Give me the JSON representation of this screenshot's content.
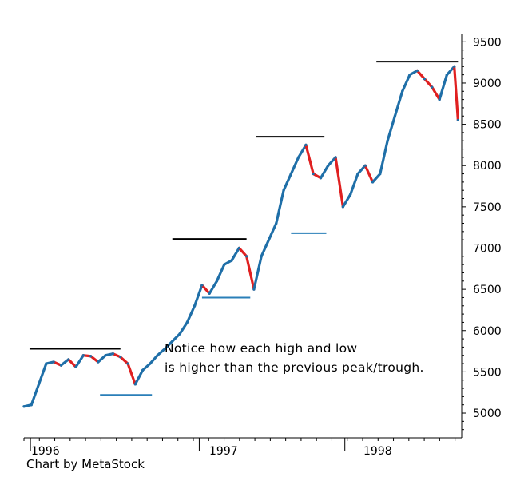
{
  "chart_data": {
    "type": "line",
    "title": "",
    "xlabel": "",
    "ylabel": "",
    "credit": "Chart by MetaStock",
    "annotation": [
      "Notice how each high and low",
      "is higher than the previous peak/trough."
    ],
    "x_ticks": [
      "1996",
      "1997",
      "1998"
    ],
    "y_ticks": [
      5000,
      5500,
      6000,
      6500,
      7000,
      7500,
      8000,
      8500,
      9000,
      9500
    ],
    "ylim": [
      4700,
      9600
    ],
    "xlim": [
      0,
      23.6
    ],
    "colors": {
      "up": "#1f6fa8",
      "down": "#e02020",
      "resistance": "#000000",
      "support": "#2a7fb8",
      "axis": "#000000"
    },
    "series": [
      {
        "name": "",
        "x": [
          0,
          0.4,
          0.8,
          1.2,
          1.6,
          2.0,
          2.4,
          2.8,
          3.2,
          3.6,
          4.0,
          4.4,
          4.8,
          5.2,
          5.6,
          6.0,
          6.4,
          6.8,
          7.2,
          7.6,
          8.0,
          8.4,
          8.8,
          9.2,
          9.6,
          10.0,
          10.4,
          10.8,
          11.2,
          11.6,
          12.0,
          12.4,
          12.8,
          13.2,
          13.6,
          14.0,
          14.4,
          14.8,
          15.2,
          15.6,
          16.0,
          16.4,
          16.8,
          17.2,
          17.6,
          18.0,
          18.4,
          18.8,
          19.2,
          19.6,
          20.0,
          20.4,
          20.8,
          21.2,
          21.6,
          22.0,
          22.4,
          22.8,
          23.2,
          23.4
        ],
        "values": [
          5080,
          5100,
          5350,
          5600,
          5620,
          5580,
          5650,
          5560,
          5700,
          5690,
          5620,
          5700,
          5720,
          5680,
          5600,
          5350,
          5520,
          5600,
          5700,
          5780,
          5870,
          5960,
          6100,
          6300,
          6550,
          6450,
          6600,
          6800,
          6850,
          7000,
          6900,
          6500,
          6900,
          7100,
          7300,
          7700,
          7900,
          8100,
          8250,
          7900,
          7850,
          8000,
          8100,
          7500,
          7650,
          7900,
          8000,
          7800,
          7900,
          8300,
          8600,
          8900,
          9100,
          9150,
          9050,
          8950,
          8800,
          9100,
          9200,
          8550
        ]
      }
    ],
    "resistance_levels": [
      {
        "value": 5780,
        "x_range": [
          0.3,
          5.2
        ]
      },
      {
        "value": 7110,
        "x_range": [
          8.0,
          12.0
        ]
      },
      {
        "value": 8350,
        "x_range": [
          12.5,
          16.2
        ]
      },
      {
        "value": 9260,
        "x_range": [
          19.0,
          23.4
        ]
      }
    ],
    "support_levels": [
      {
        "value": 5220,
        "x_range": [
          4.1,
          6.9
        ]
      },
      {
        "value": 6400,
        "x_range": [
          9.6,
          12.2
        ]
      },
      {
        "value": 7180,
        "x_range": [
          14.4,
          16.3
        ]
      }
    ]
  }
}
